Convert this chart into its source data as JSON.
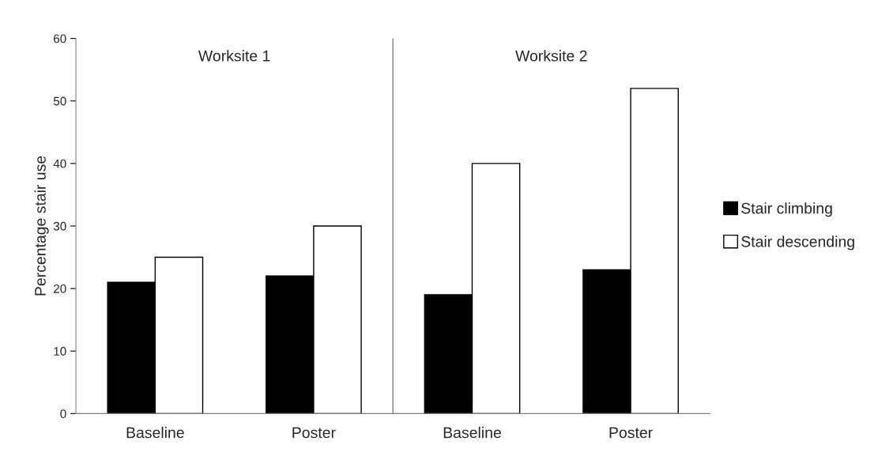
{
  "chart_data": {
    "type": "bar",
    "ylabel": "Percentage stair use",
    "categories": [
      "Baseline",
      "Poster",
      "Baseline",
      "Poster"
    ],
    "series": [
      {
        "name": "Stair climbing",
        "color": "#000000",
        "values": [
          21,
          22,
          19,
          23
        ]
      },
      {
        "name": "Stair descending",
        "color": "#ffffff",
        "values": [
          25,
          30,
          40,
          52
        ]
      }
    ],
    "ylim": [
      0,
      60
    ],
    "yticks": [
      0,
      10,
      20,
      30,
      40,
      50,
      60
    ],
    "grid": false,
    "legend": "right",
    "annotations": [
      "Worksite 1",
      "Worksite 2"
    ]
  }
}
